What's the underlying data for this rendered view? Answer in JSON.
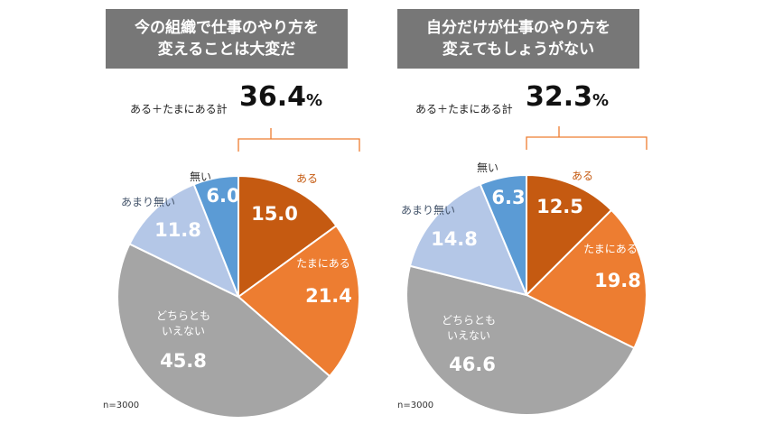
{
  "summary_label": "ある＋たまにある計",
  "n_label": "n=3000",
  "colors": {
    "aru": "#c55a11",
    "tamani": "#ed7d31",
    "dochira": "#a5a5a5",
    "amari": "#b4c7e7",
    "nai": "#5b9bd5",
    "bracket": "#ed7d31",
    "title_bg": "#777777"
  },
  "chart_data": [
    {
      "type": "pie",
      "title_lines": [
        "今の組織で仕事のやり方を",
        "変えることは大変だ"
      ],
      "summary_value": "36.4",
      "summary_unit": "%",
      "slices": [
        {
          "label": "ある",
          "value": 15.0,
          "value_text": "15.0"
        },
        {
          "label": "たまにある",
          "value": 21.4,
          "value_text": "21.4"
        },
        {
          "label": "どちらとも\nいえない",
          "value": 45.8,
          "value_text": "45.8"
        },
        {
          "label": "あまり無い",
          "value": 11.8,
          "value_text": "11.8"
        },
        {
          "label": "無い",
          "value": 6.0,
          "value_text": "6.0"
        }
      ]
    },
    {
      "type": "pie",
      "title_lines": [
        "自分だけが仕事のやり方を",
        "変えてもしょうがない"
      ],
      "summary_value": "32.3",
      "summary_unit": "%",
      "slices": [
        {
          "label": "ある",
          "value": 12.5,
          "value_text": "12.5"
        },
        {
          "label": "たまにある",
          "value": 19.8,
          "value_text": "19.8"
        },
        {
          "label": "どちらとも\nいえない",
          "value": 46.6,
          "value_text": "46.6"
        },
        {
          "label": "あまり無い",
          "value": 14.8,
          "value_text": "14.8"
        },
        {
          "label": "無い",
          "value": 6.3,
          "value_text": "6.3"
        }
      ]
    }
  ]
}
